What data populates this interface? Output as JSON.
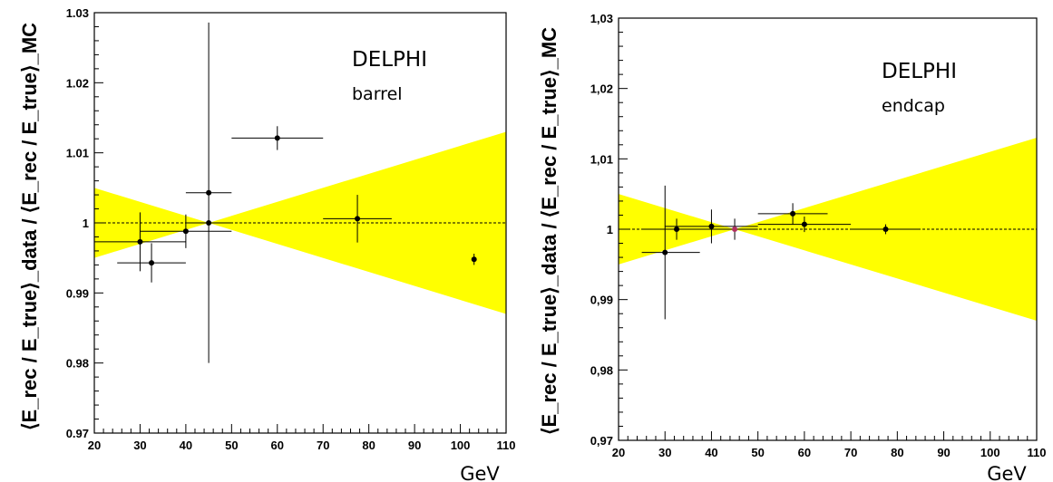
{
  "chart_data": [
    {
      "type": "scatter",
      "title": "",
      "annotation_line1": "DELPHI",
      "annotation_line2": "barrel",
      "xlabel": "GeV",
      "ylabel": "⟨E_rec / E_true⟩_data / ⟨E_rec / E_true⟩_MC",
      "xlim": [
        20,
        110
      ],
      "ylim": [
        0.97,
        1.03
      ],
      "xticks": [
        20,
        30,
        40,
        50,
        60,
        70,
        80,
        90,
        100,
        110
      ],
      "yticks": [
        0.97,
        0.98,
        0.99,
        1.0,
        1.01,
        1.02,
        1.03
      ],
      "ytick_labels": [
        "0.97",
        "0.98",
        "0.99",
        "1",
        "1.01",
        "1.02",
        "1.03"
      ],
      "reference_line": 1.0,
      "band": {
        "x": [
          20,
          45,
          110
        ],
        "upper": [
          1.005,
          1.0,
          1.013
        ],
        "lower": [
          0.995,
          1.0,
          0.987
        ]
      },
      "points": [
        {
          "x": 30,
          "y": 0.9973,
          "xerr": [
            10,
            10
          ],
          "yerr": [
            0.0042,
            0.0042
          ]
        },
        {
          "x": 32.5,
          "y": 0.9943,
          "xerr": [
            7.5,
            7.5
          ],
          "yerr": [
            0.0028,
            0.0028
          ]
        },
        {
          "x": 40,
          "y": 0.9988,
          "xerr": [
            10,
            10
          ],
          "yerr": [
            0.0024,
            0.0024
          ]
        },
        {
          "x": 45,
          "y": 1.0043,
          "xerr": [
            5,
            5
          ],
          "yerr": [
            0.0243,
            0.0243
          ]
        },
        {
          "x": 45,
          "y": 1.0,
          "xerr": [
            5,
            5
          ],
          "yerr": [
            0,
            0
          ]
        },
        {
          "x": 60,
          "y": 1.0121,
          "xerr": [
            10,
            10
          ],
          "yerr": [
            0.0017,
            0.0017
          ]
        },
        {
          "x": 77.5,
          "y": 1.0006,
          "xerr": [
            7.5,
            7.5
          ],
          "yerr": [
            0.0034,
            0.0034
          ]
        },
        {
          "x": 103,
          "y": 0.9948,
          "xerr": [
            0,
            0
          ],
          "yerr": [
            0.0008,
            0.0008
          ]
        }
      ]
    },
    {
      "type": "scatter",
      "title": "",
      "annotation_line1": "DELPHI",
      "annotation_line2": "endcap",
      "xlabel": "GeV",
      "ylabel": "⟨E_rec / E_true⟩_data / ⟨E_rec / E_true⟩_MC",
      "xlim": [
        20,
        110
      ],
      "ylim": [
        0.97,
        1.03
      ],
      "xticks": [
        20,
        30,
        40,
        50,
        60,
        70,
        80,
        90,
        100,
        110
      ],
      "yticks": [
        0.97,
        0.98,
        0.99,
        1.0,
        1.01,
        1.02,
        1.03
      ],
      "ytick_labels": [
        "0,97",
        "0,98",
        "0,99",
        "1",
        "1,01",
        "1,02",
        "1,03"
      ],
      "reference_line": 1.0,
      "band": {
        "x": [
          20,
          45,
          110
        ],
        "upper": [
          1.005,
          1.0,
          1.013
        ],
        "lower": [
          0.995,
          1.0,
          0.987
        ]
      },
      "points": [
        {
          "x": 30,
          "y": 0.9967,
          "xerr": [
            5,
            7.5
          ],
          "yerr": [
            0.0095,
            0.0095
          ]
        },
        {
          "x": 32.5,
          "y": 1.0,
          "xerr": [
            7.5,
            7.5
          ],
          "yerr": [
            0.0015,
            0.0015
          ]
        },
        {
          "x": 40,
          "y": 1.0004,
          "xerr": [
            10,
            10
          ],
          "yerr": [
            0.0024,
            0.0024
          ]
        },
        {
          "x": 45,
          "y": 1.0,
          "xerr": [
            5,
            5
          ],
          "yerr": [
            0.0015,
            0.0015
          ],
          "color": "#b03060"
        },
        {
          "x": 57.5,
          "y": 1.0022,
          "xerr": [
            7.5,
            7.5
          ],
          "yerr": [
            0.0015,
            0.0015
          ]
        },
        {
          "x": 60,
          "y": 1.0007,
          "xerr": [
            10,
            10
          ],
          "yerr": [
            0.0011,
            0.0011
          ]
        },
        {
          "x": 77.5,
          "y": 1.0,
          "xerr": [
            7.5,
            7.5
          ],
          "yerr": [
            0.0007,
            0.0007
          ]
        }
      ]
    }
  ],
  "colors": {
    "band": "#ffff00",
    "marker": "#000000",
    "axis": "#000000"
  }
}
